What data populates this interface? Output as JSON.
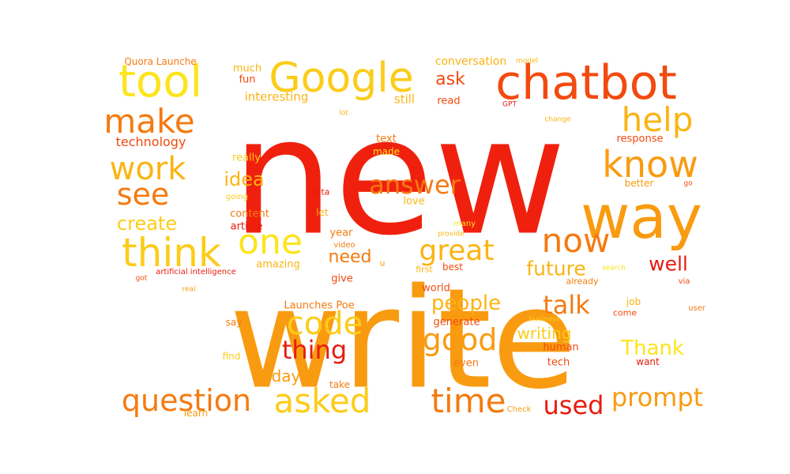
{
  "palette": {
    "red": "#f0200e",
    "red_dark": "#e81b0e",
    "orange_red": "#f24a0f",
    "orange": "#f57a10",
    "dark_orange": "#f99b10",
    "amber": "#fbb413",
    "gold": "#fccc1a",
    "yellow": "#fde41e",
    "light_yellow": "#fdf03a"
  },
  "words": [
    {
      "text": "write",
      "color": "#f99b10"
    },
    {
      "text": "new",
      "color": "#f0200e"
    },
    {
      "text": "chatbot",
      "color": "#f24a0f"
    },
    {
      "text": "tool",
      "color": "#fde41e"
    },
    {
      "text": "Google",
      "color": "#fccc1a"
    },
    {
      "text": "way",
      "color": "#f99b10"
    },
    {
      "text": "know",
      "color": "#f99b10"
    },
    {
      "text": "help",
      "color": "#fbb413"
    },
    {
      "text": "make",
      "color": "#f57a10"
    },
    {
      "text": "work",
      "color": "#fbb413"
    },
    {
      "text": "see",
      "color": "#f57a10"
    },
    {
      "text": "think",
      "color": "#fccc1a"
    },
    {
      "text": "one",
      "color": "#fde41e"
    },
    {
      "text": "now",
      "color": "#f57a10"
    },
    {
      "text": "great",
      "color": "#fbb413"
    },
    {
      "text": "answer",
      "color": "#f57a10"
    },
    {
      "text": "code",
      "color": "#fccc1a"
    },
    {
      "text": "good",
      "color": "#f99b10"
    },
    {
      "text": "time",
      "color": "#f57a10"
    },
    {
      "text": "asked",
      "color": "#fccc1a"
    },
    {
      "text": "question",
      "color": "#f57a10"
    },
    {
      "text": "prompt",
      "color": "#f99b10"
    },
    {
      "text": "thing",
      "color": "#e81b0e"
    },
    {
      "text": "talk",
      "color": "#f57a10"
    },
    {
      "text": "people",
      "color": "#fbb413"
    },
    {
      "text": "future",
      "color": "#fbb413"
    },
    {
      "text": "well",
      "color": "#e81b0e"
    },
    {
      "text": "used",
      "color": "#e81b0e"
    },
    {
      "text": "Thank",
      "color": "#fde41e"
    },
    {
      "text": "writing",
      "color": "#fccc1a"
    },
    {
      "text": "create",
      "color": "#fccc1a"
    },
    {
      "text": "need",
      "color": "#f57a10"
    },
    {
      "text": "idea",
      "color": "#fbb413"
    },
    {
      "text": "ask",
      "color": "#f24a0f"
    },
    {
      "text": "day",
      "color": "#f99b10"
    },
    {
      "text": "technology",
      "color": "#f24a0f"
    },
    {
      "text": "interesting",
      "color": "#fbb413"
    },
    {
      "text": "conversation",
      "color": "#fbb413"
    },
    {
      "text": "Quora Launche",
      "color": "#f57a10"
    },
    {
      "text": "much",
      "color": "#fbb413"
    },
    {
      "text": "fun",
      "color": "#f24a0f"
    },
    {
      "text": "still",
      "color": "#fbb413"
    },
    {
      "text": "read",
      "color": "#f24a0f"
    },
    {
      "text": "really",
      "color": "#fccc1a"
    },
    {
      "text": "text",
      "color": "#f57a10"
    },
    {
      "text": "made",
      "color": "#fde41e"
    },
    {
      "text": "response",
      "color": "#f24a0f"
    },
    {
      "text": "better",
      "color": "#f99b10"
    },
    {
      "text": "going",
      "color": "#fccc1a"
    },
    {
      "text": "content",
      "color": "#f57a10"
    },
    {
      "text": "data",
      "color": "#e81b0e"
    },
    {
      "text": "love",
      "color": "#fbb413"
    },
    {
      "text": "article",
      "color": "#e81b0e"
    },
    {
      "text": "let",
      "color": "#fbb413"
    },
    {
      "text": "year",
      "color": "#f57a10"
    },
    {
      "text": "video",
      "color": "#f57a10"
    },
    {
      "text": "many",
      "color": "#fde41e"
    },
    {
      "text": "provide",
      "color": "#fbb413"
    },
    {
      "text": "amazing",
      "color": "#fbb413"
    },
    {
      "text": "best",
      "color": "#f24a0f"
    },
    {
      "text": "first",
      "color": "#fbb413"
    },
    {
      "text": "search",
      "color": "#fde41e"
    },
    {
      "text": "artificial intelligence",
      "color": "#e81b0e"
    },
    {
      "text": "got",
      "color": "#f24a0f"
    },
    {
      "text": "give",
      "color": "#f24a0f"
    },
    {
      "text": "world",
      "color": "#f24a0f"
    },
    {
      "text": "already",
      "color": "#f57a10"
    },
    {
      "text": "via",
      "color": "#f24a0f"
    },
    {
      "text": "real",
      "color": "#f99b10"
    },
    {
      "text": "Launches Poe",
      "color": "#f57a10"
    },
    {
      "text": "generate",
      "color": "#f24a0f"
    },
    {
      "text": "job",
      "color": "#fbb413"
    },
    {
      "text": "come",
      "color": "#f24a0f"
    },
    {
      "text": "user",
      "color": "#f57a10"
    },
    {
      "text": "business",
      "color": "#fccc1a"
    },
    {
      "text": "say",
      "color": "#f57a10"
    },
    {
      "text": "human",
      "color": "#f24a0f"
    },
    {
      "text": "find",
      "color": "#fccc1a"
    },
    {
      "text": "tech",
      "color": "#f24a0f"
    },
    {
      "text": "even",
      "color": "#f57a10"
    },
    {
      "text": "want",
      "color": "#e81b0e"
    },
    {
      "text": "take",
      "color": "#f57a10"
    },
    {
      "text": "learn",
      "color": "#f99b10"
    },
    {
      "text": "Check",
      "color": "#f99b10"
    },
    {
      "text": "model",
      "color": "#fbb413"
    },
    {
      "text": "GPT",
      "color": "#e81b0e"
    },
    {
      "text": "lot",
      "color": "#fbb413"
    },
    {
      "text": "change",
      "color": "#fbb413"
    },
    {
      "text": "go",
      "color": "#f24a0f"
    },
    {
      "text": "u",
      "color": "#f99b10"
    }
  ]
}
